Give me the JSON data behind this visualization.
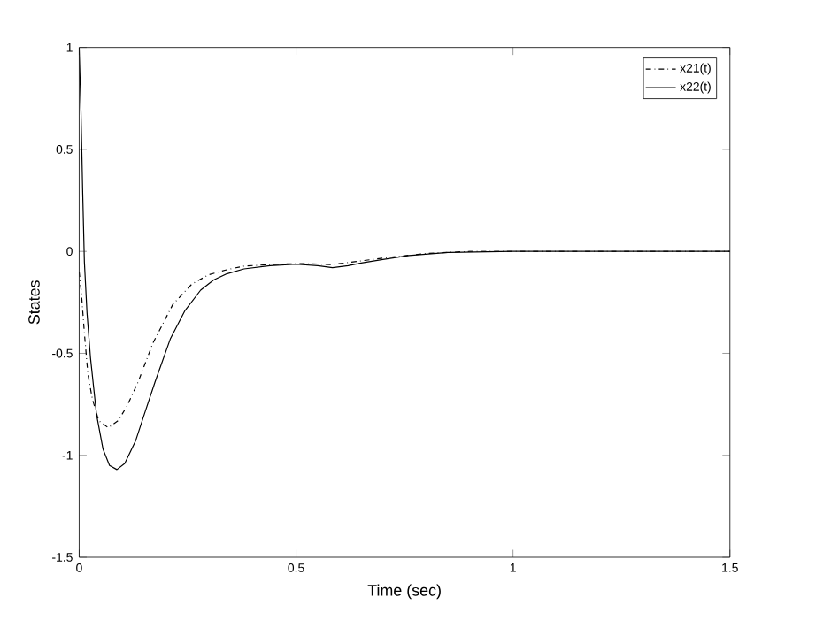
{
  "chart_data": {
    "type": "line",
    "xlabel": "Time (sec)",
    "ylabel": "States",
    "xlim": [
      0,
      1.5
    ],
    "ylim": [
      -1.5,
      1
    ],
    "xticks": [
      0,
      0.5,
      1,
      1.5
    ],
    "yticks": [
      -1.5,
      -1,
      -0.5,
      0,
      0.5,
      1
    ],
    "legend": "top right",
    "grid": false,
    "series": [
      {
        "name": "x21(t)",
        "color": "#000000",
        "line_style": "dashdot",
        "x": [
          0,
          0.005,
          0.012,
          0.02,
          0.03,
          0.045,
          0.067,
          0.09,
          0.11,
          0.136,
          0.17,
          0.216,
          0.26,
          0.298,
          0.34,
          0.38,
          0.44,
          0.5,
          0.55,
          0.58,
          0.62,
          0.71,
          0.8,
          0.9,
          1.0,
          1.5
        ],
        "values": [
          -0.1,
          -0.2,
          -0.4,
          -0.6,
          -0.72,
          -0.83,
          -0.865,
          -0.83,
          -0.76,
          -0.64,
          -0.45,
          -0.26,
          -0.16,
          -0.115,
          -0.09,
          -0.072,
          -0.065,
          -0.06,
          -0.062,
          -0.065,
          -0.055,
          -0.03,
          -0.01,
          0,
          0,
          0
        ]
      },
      {
        "name": "x22(t)",
        "color": "#000000",
        "line_style": "solid",
        "x": [
          0,
          0.004,
          0.008,
          0.012,
          0.018,
          0.026,
          0.04,
          0.055,
          0.07,
          0.087,
          0.105,
          0.13,
          0.15,
          0.175,
          0.21,
          0.244,
          0.28,
          0.31,
          0.34,
          0.38,
          0.44,
          0.5,
          0.55,
          0.584,
          0.62,
          0.65,
          0.7,
          0.76,
          0.85,
          1.0,
          1.5
        ],
        "values": [
          1,
          0.7,
          0.3,
          -0.05,
          -0.3,
          -0.52,
          -0.8,
          -0.97,
          -1.05,
          -1.07,
          -1.04,
          -0.93,
          -0.8,
          -0.64,
          -0.43,
          -0.29,
          -0.19,
          -0.14,
          -0.11,
          -0.086,
          -0.07,
          -0.063,
          -0.07,
          -0.08,
          -0.07,
          -0.057,
          -0.04,
          -0.02,
          -0.005,
          0,
          0
        ]
      }
    ]
  }
}
